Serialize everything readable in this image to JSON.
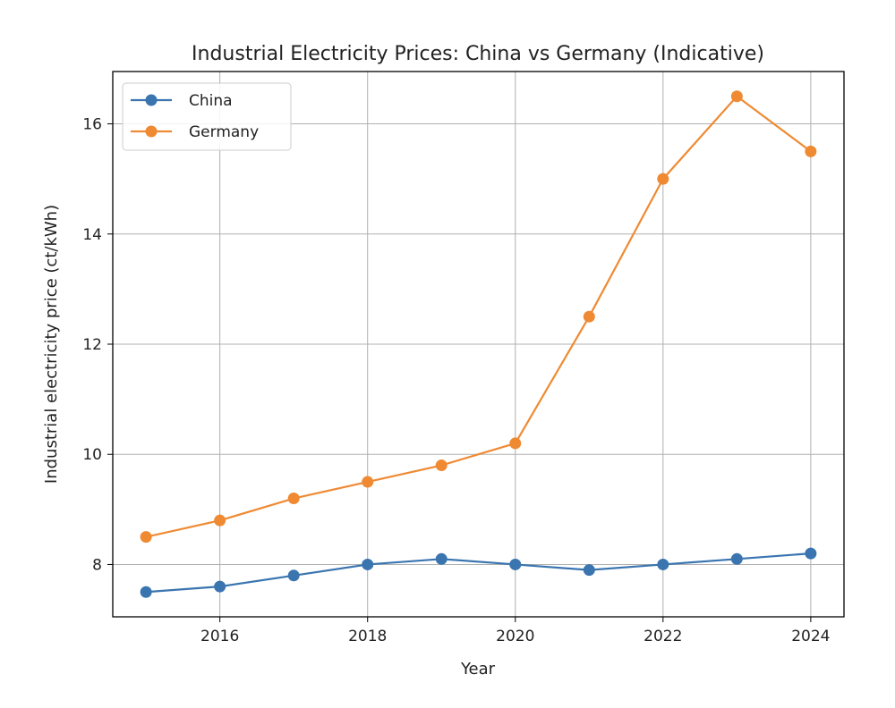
{
  "chart_data": {
    "type": "line",
    "title": "Industrial Electricity Prices: China vs Germany (Indicative)",
    "xlabel": "Year",
    "ylabel": "Industrial electricity price (ct/kWh)",
    "x": [
      2015,
      2016,
      2017,
      2018,
      2019,
      2020,
      2021,
      2022,
      2023,
      2024
    ],
    "series": [
      {
        "name": "China",
        "color": "#3a75b0",
        "marker": "circle",
        "values": [
          7.5,
          7.6,
          7.8,
          8.0,
          8.1,
          8.0,
          7.9,
          8.0,
          8.1,
          8.2
        ]
      },
      {
        "name": "Germany",
        "color": "#ef8a33",
        "marker": "circle",
        "values": [
          8.5,
          8.8,
          9.2,
          9.5,
          9.8,
          10.2,
          12.5,
          15.0,
          16.5,
          15.5
        ]
      }
    ],
    "xlim": [
      2014.55,
      2024.45
    ],
    "ylim": [
      7.05,
      16.95
    ],
    "xticks": [
      2016,
      2018,
      2020,
      2022,
      2024
    ],
    "yticks": [
      8,
      10,
      12,
      14,
      16
    ],
    "grid": true,
    "legend_position": "top-left"
  }
}
